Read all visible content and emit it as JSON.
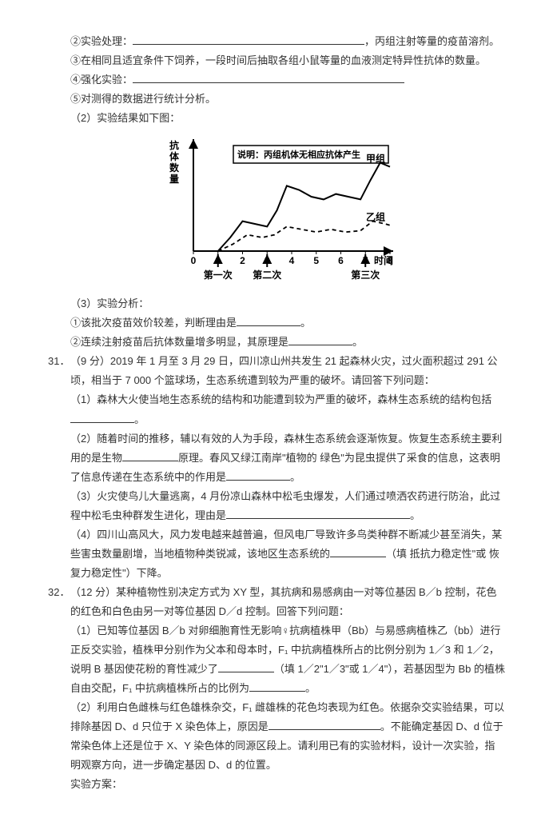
{
  "pre": {
    "line_exp": {
      "prefix": "②实验处理：",
      "blank_width": 290,
      "suffix": "，丙组注射等量的疫苗溶剂。"
    },
    "line_feed": "③在相同且适宜条件下饲养，一段时间后抽取各组小鼠等量的血液测定特异性抗体的数量。",
    "line_reinforce": {
      "prefix": "④强化实验：",
      "blank_width": 340
    },
    "line_stats": "⑤对测得的数据进行统计分析。",
    "line_result": "（2）实验结果如下图："
  },
  "chart": {
    "y_label": "抗体数量",
    "x_label": "时间（d）",
    "note": "说明：丙组机体无相应抗体产生",
    "x_ticks": [
      "0",
      "1",
      "2",
      "3",
      "4",
      "5",
      "6",
      "7",
      "8"
    ],
    "markers": [
      {
        "label": "第一次",
        "x_idx": 1
      },
      {
        "label": "第二次",
        "x_idx": 3
      },
      {
        "label": "第三次",
        "x_idx": 7
      }
    ],
    "series": [
      {
        "name": "甲组",
        "label": "甲组",
        "style": "solid",
        "color": "#000000",
        "width": 2,
        "points": [
          [
            1,
            0
          ],
          [
            1.5,
            10
          ],
          [
            2,
            22
          ],
          [
            2.5,
            20
          ],
          [
            3,
            18
          ],
          [
            3.4,
            30
          ],
          [
            3.8,
            48
          ],
          [
            4.3,
            45
          ],
          [
            4.8,
            40
          ],
          [
            5.3,
            38
          ],
          [
            5.8,
            42
          ],
          [
            6.3,
            40
          ],
          [
            6.8,
            38
          ],
          [
            7.2,
            52
          ],
          [
            7.6,
            65
          ],
          [
            8,
            62
          ]
        ]
      },
      {
        "name": "乙组",
        "label": "乙组",
        "style": "dashed",
        "color": "#000000",
        "width": 1.8,
        "points": [
          [
            1,
            0
          ],
          [
            1.6,
            5
          ],
          [
            2.2,
            12
          ],
          [
            2.8,
            10
          ],
          [
            3.3,
            12
          ],
          [
            3.8,
            18
          ],
          [
            4.4,
            16
          ],
          [
            5,
            14
          ],
          [
            5.6,
            16
          ],
          [
            6.2,
            14
          ],
          [
            6.8,
            15
          ],
          [
            7.3,
            22
          ],
          [
            7.8,
            20
          ],
          [
            8,
            19
          ]
        ]
      }
    ],
    "x_domain": [
      0,
      8
    ],
    "y_domain": [
      0,
      80
    ],
    "axis_color": "#000000",
    "axis_width": 2,
    "font_size": 12,
    "bg": "#ffffff"
  },
  "post": {
    "line_analysis_title": "（3）实验分析：",
    "line_a1": {
      "prefix": "①该批次疫苗效价较差，判断理由是",
      "blank_width": 80,
      "suffix": "。"
    },
    "line_a2": {
      "prefix": "②连续注射疫苗后抗体数量增多明显，其原理是",
      "blank_width": 80,
      "suffix": "。"
    }
  },
  "q31": {
    "num": "31．",
    "stem1": "（9 分）2019 年 1 月至 3 月 29 日，四川凉山州共发生 21 起森林火灾，过火面积超过 291 公顷，相当于 7 000 个篮球场，生态系统遭到较为严重的破坏。请回答下列问题：",
    "p1": {
      "prefix": "（1）森林大火使当地生态系统的结构和功能遭到较为严重的破坏，森林生态系统的结构包括",
      "blank_width": 80,
      "suffix": "。"
    },
    "p2a": {
      "prefix": "（2）随着时间的推移，辅以有效的人为手段，森林生态系统会逐渐恢复。恢复生态系统主要利用的是生物",
      "blank_width": 70,
      "mid": "原理。春风又绿江南岸\"植物的 绿色\"为昆虫提供了采食的信息，这表明了信息传递在生态系统中的作用是",
      "blank_width2": 80,
      "suffix": "。"
    },
    "p3": {
      "prefix": "（3）火灾使鸟儿大量逃离，4 月份凉山森林中松毛虫爆发，人们通过喷洒农药进行防治，此过程中松毛虫种群发生进化，理由是",
      "blank_width": 230,
      "suffix": "。"
    },
    "p4": {
      "prefix": "（4）四川山高风大，风力发电越来越普遍，但风电厂导致许多鸟类种群不断减少甚至消失，某些害虫数量剧增，当地植物种类锐减，该地区生态系统的",
      "blank_width": 70,
      "suffix": "（填 抵抗力稳定性\"或 恢复力稳定性\"）下降。"
    }
  },
  "q32": {
    "num": "32．",
    "stem1": "（12 分）某种植物性别决定方式为 XY 型，其抗病和易感病由一对等位基因 B／b 控制，花色的红色和白色由另一对等位基因 D／d 控制。回答下列问题：",
    "p1": {
      "prefix": "（1）已知等位基因 B／b 对卵细胞育性无影响♀抗病植株甲（Bb）与易感病植株乙（bb）进行正反交实验，植株甲分别作为父本和母本时，F₁ 中抗病植株所占的比例分别为 1／3 和 1／2，说明 B 基因使花粉的育性减少了",
      "blank_width": 70,
      "mid": "（填 1／2\"1／3\"或 1／4\"），若基因型为 Bb 的植株自由交配，F₁ 中抗病植株所占的比例为",
      "blank_width2": 70,
      "suffix": "。"
    },
    "p2": {
      "prefix": "（2）利用白色雌株与红色雄株杂交，F₁ 雌雄株的花色均表现为红色。依据杂交实验结果，可以排除基因 D、d 只位于 X 染色体上，原因是",
      "blank_width": 140,
      "suffix": "。不能确定基因 D、d 位于常染色体上还是位于 X、Y 染色体的同源区段上。请利用已有的实验材料，设计一次实验，指明观察方向，进一步确定基因 D、d 的位置。"
    },
    "p3": "实验方案："
  }
}
